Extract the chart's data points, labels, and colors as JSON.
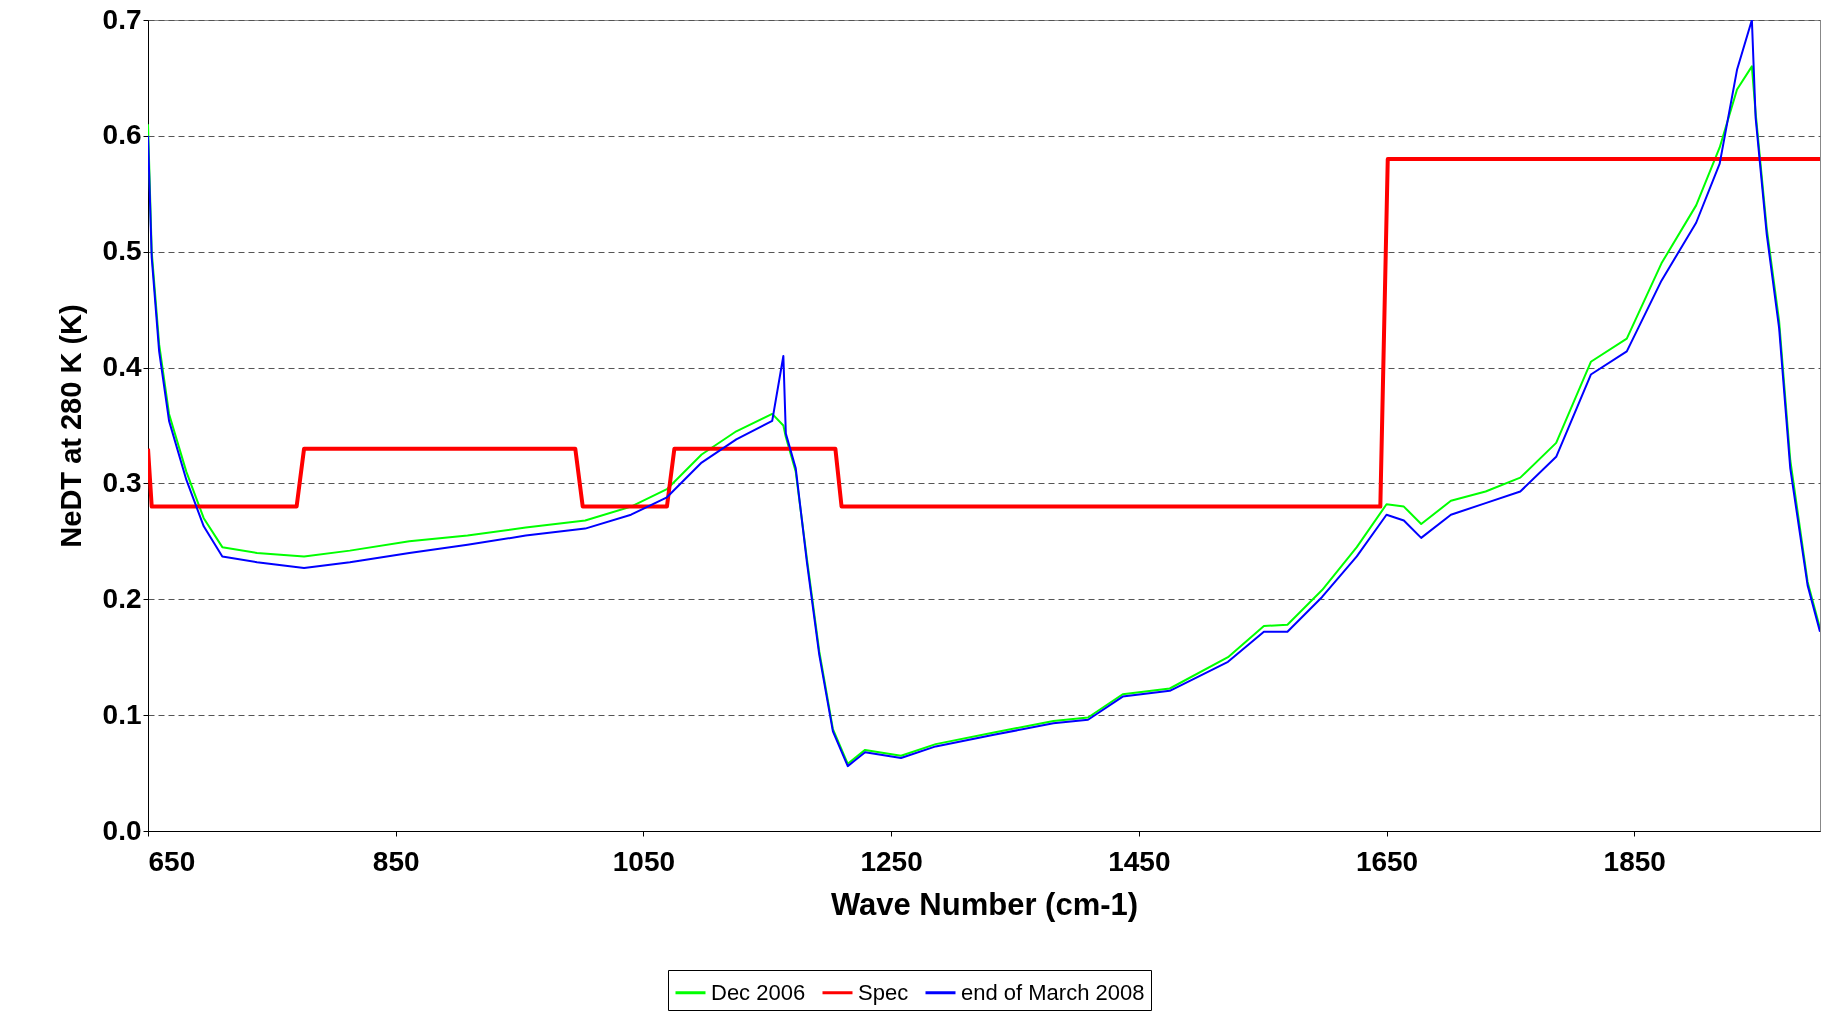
{
  "chart_data": {
    "type": "line",
    "xlabel": "Wave Number (cm-1)",
    "ylabel": "NeDT at 280 K (K)",
    "x": [
      650,
      653,
      659,
      667,
      681,
      695,
      710,
      738,
      776,
      813,
      861,
      908,
      955,
      1003,
      1040,
      1069,
      1097,
      1125,
      1154,
      1163,
      1165,
      1173,
      1182,
      1192,
      1203,
      1215,
      1229,
      1258,
      1286,
      1333,
      1381,
      1409,
      1437,
      1475,
      1522,
      1551,
      1570,
      1598,
      1626,
      1650,
      1664,
      1678,
      1702,
      1730,
      1758,
      1787,
      1815,
      1844,
      1872,
      1900,
      1919,
      1933,
      1945,
      1948,
      1957,
      1967,
      1976,
      1990,
      2000
    ],
    "series": [
      {
        "name": "Dec 2006",
        "color": "#00ff00",
        "values": [
          0.61,
          0.5,
          0.42,
          0.36,
          0.31,
          0.27,
          0.245,
          0.24,
          0.237,
          0.242,
          0.25,
          0.255,
          0.262,
          0.268,
          0.28,
          0.295,
          0.325,
          0.345,
          0.36,
          0.35,
          0.34,
          0.31,
          0.235,
          0.155,
          0.088,
          0.058,
          0.07,
          0.065,
          0.075,
          0.085,
          0.095,
          0.098,
          0.118,
          0.123,
          0.15,
          0.177,
          0.178,
          0.208,
          0.245,
          0.282,
          0.28,
          0.265,
          0.285,
          0.293,
          0.305,
          0.335,
          0.405,
          0.425,
          0.49,
          0.54,
          0.59,
          0.64,
          0.66,
          0.62,
          0.52,
          0.44,
          0.32,
          0.215,
          0.175
        ]
      },
      {
        "name": "Spec",
        "color": "#ff0000",
        "x": [
          650,
          653,
          770,
          776,
          995,
          1001,
          1069,
          1075,
          1205,
          1210,
          1645,
          1651,
          2000
        ],
        "values": [
          0.33,
          0.28,
          0.28,
          0.33,
          0.33,
          0.28,
          0.28,
          0.33,
          0.33,
          0.28,
          0.28,
          0.58,
          0.58
        ]
      },
      {
        "name": "end of March 2008",
        "color": "#0000ff",
        "values": [
          0.6,
          0.495,
          0.414,
          0.354,
          0.303,
          0.263,
          0.237,
          0.232,
          0.227,
          0.232,
          0.24,
          0.247,
          0.255,
          0.261,
          0.273,
          0.288,
          0.318,
          0.338,
          0.354,
          0.41,
          0.343,
          0.313,
          0.232,
          0.152,
          0.086,
          0.056,
          0.068,
          0.063,
          0.073,
          0.083,
          0.093,
          0.096,
          0.116,
          0.121,
          0.146,
          0.172,
          0.172,
          0.202,
          0.237,
          0.273,
          0.268,
          0.253,
          0.273,
          0.283,
          0.293,
          0.323,
          0.394,
          0.414,
          0.475,
          0.525,
          0.576,
          0.657,
          0.7,
          0.616,
          0.515,
          0.434,
          0.313,
          0.212,
          0.172
        ]
      }
    ],
    "xlim": [
      650,
      2000
    ],
    "xticks": [
      650,
      850,
      1050,
      1250,
      1450,
      1650,
      1850
    ],
    "ylim": [
      0,
      0.7
    ],
    "yticks": [
      {
        "value": 0,
        "label": "0.0"
      },
      0.1,
      0.2,
      0.3,
      0.4,
      0.5,
      0.6,
      0.7
    ],
    "grid": "y",
    "line_style": "solid",
    "legend": "bottom"
  }
}
